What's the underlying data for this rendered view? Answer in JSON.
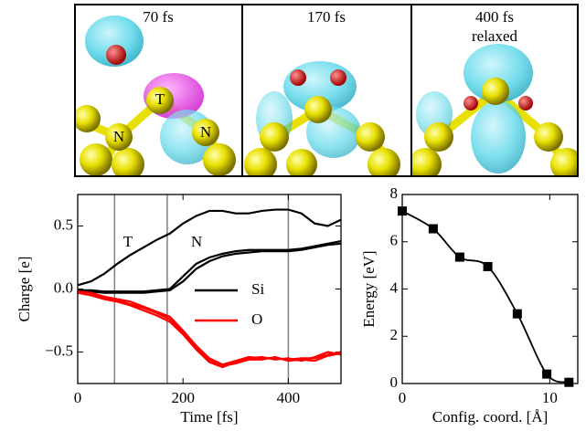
{
  "panels": [
    {
      "time": "70 fs",
      "atoms": [
        "T",
        "N",
        "N"
      ]
    },
    {
      "time": "170 fs"
    },
    {
      "time": "400 fs",
      "note": "relaxed"
    }
  ],
  "chart_data": [
    {
      "type": "line",
      "xlabel": "Time [fs]",
      "ylabel": "Charge [e]",
      "xlim": [
        0,
        500
      ],
      "ylim": [
        -0.75,
        0.75
      ],
      "xticks": [
        0,
        200,
        400
      ],
      "yticks": [
        {
          "value": -0.5,
          "label": "−0.5"
        },
        {
          "value": 0,
          "label": "0.0"
        },
        0.5
      ],
      "vlines": [
        70,
        170,
        400
      ],
      "vline_color": "#808080",
      "annotations": [
        "T",
        "N"
      ],
      "legend": "center right",
      "x": [
        0,
        25,
        50,
        75,
        100,
        125,
        150,
        175,
        200,
        225,
        250,
        275,
        300,
        325,
        350,
        375,
        400,
        425,
        450,
        475,
        500
      ],
      "series": [
        {
          "name": "Si",
          "color": "#000000",
          "values": [
            0.03,
            0.06,
            0.12,
            0.2,
            0.27,
            0.33,
            0.39,
            0.44,
            0.52,
            0.58,
            0.62,
            0.62,
            0.6,
            0.6,
            0.62,
            0.63,
            0.63,
            0.6,
            0.52,
            0.5,
            0.55
          ]
        },
        {
          "color": "#000000",
          "values": [
            -0.01,
            -0.01,
            -0.02,
            -0.02,
            -0.02,
            -0.02,
            -0.01,
            0.0,
            0.1,
            0.2,
            0.25,
            0.28,
            0.3,
            0.31,
            0.31,
            0.31,
            0.31,
            0.32,
            0.34,
            0.36,
            0.38
          ]
        },
        {
          "color": "#000000",
          "values": [
            -0.02,
            -0.02,
            -0.03,
            -0.03,
            -0.03,
            -0.03,
            -0.02,
            -0.01,
            0.06,
            0.16,
            0.22,
            0.26,
            0.28,
            0.29,
            0.3,
            0.3,
            0.3,
            0.31,
            0.33,
            0.35,
            0.36
          ]
        },
        {
          "name": "O",
          "color": "#ff0000",
          "values": [
            -0.02,
            -0.03,
            -0.06,
            -0.08,
            -0.1,
            -0.14,
            -0.18,
            -0.22,
            -0.33,
            -0.45,
            -0.55,
            -0.6,
            -0.57,
            -0.54,
            -0.55,
            -0.55,
            -0.56,
            -0.55,
            -0.55,
            -0.52,
            -0.5
          ]
        },
        {
          "color": "#ff0000",
          "values": [
            -0.03,
            -0.05,
            -0.08,
            -0.1,
            -0.13,
            -0.17,
            -0.21,
            -0.26,
            -0.36,
            -0.48,
            -0.58,
            -0.62,
            -0.58,
            -0.55,
            -0.54,
            -0.56,
            -0.55,
            -0.57,
            -0.54,
            -0.5,
            -0.52
          ]
        },
        {
          "color": "#ff0000",
          "values": [
            -0.02,
            -0.04,
            -0.07,
            -0.09,
            -0.12,
            -0.15,
            -0.19,
            -0.24,
            -0.35,
            -0.47,
            -0.56,
            -0.61,
            -0.59,
            -0.56,
            -0.56,
            -0.54,
            -0.57,
            -0.56,
            -0.57,
            -0.53,
            -0.51
          ]
        }
      ]
    },
    {
      "type": "line",
      "marker": "square",
      "xlabel": "Config. coord. [Å]",
      "ylabel": "Energy [eV]",
      "xlim": [
        0,
        11.9
      ],
      "ylim": [
        0,
        8
      ],
      "xticks": [
        0,
        10
      ],
      "yticks": [
        0,
        2,
        4,
        6,
        8
      ],
      "color": "#000000",
      "x": [
        0,
        2.1,
        3.9,
        5.8,
        7.8,
        9.8,
        11.3
      ],
      "values": [
        7.3,
        6.55,
        5.35,
        4.95,
        2.95,
        0.4,
        0.05
      ]
    }
  ]
}
